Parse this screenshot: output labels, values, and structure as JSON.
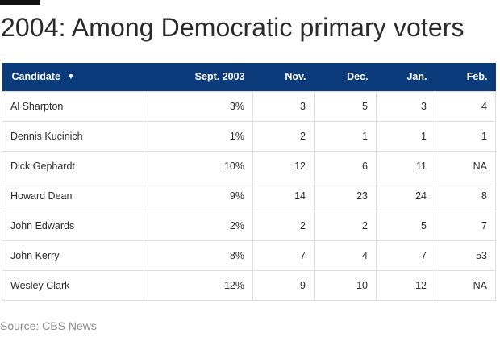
{
  "title": "2004: Among Democratic primary voters",
  "source": "Source: CBS News",
  "chart_data": {
    "type": "table",
    "title": "2004: Among Democratic primary voters",
    "columns": [
      "Candidate",
      "Sept. 2003",
      "Nov.",
      "Dec.",
      "Jan.",
      "Feb."
    ],
    "sort_indicator": "down",
    "header_color": "#0c3b7c",
    "rows": [
      [
        "Al Sharpton",
        "3%",
        "3",
        "5",
        "3",
        "4"
      ],
      [
        "Dennis Kucinich",
        "1%",
        "2",
        "1",
        "1",
        "1"
      ],
      [
        "Dick Gephardt",
        "10%",
        "12",
        "6",
        "11",
        "NA"
      ],
      [
        "Howard Dean",
        "9%",
        "14",
        "23",
        "24",
        "8"
      ],
      [
        "John Edwards",
        "2%",
        "2",
        "2",
        "5",
        "7"
      ],
      [
        "John Kerry",
        "8%",
        "7",
        "4",
        "7",
        "53"
      ],
      [
        "Wesley Clark",
        "12%",
        "9",
        "10",
        "12",
        "NA"
      ]
    ],
    "source": "Source: CBS News"
  }
}
